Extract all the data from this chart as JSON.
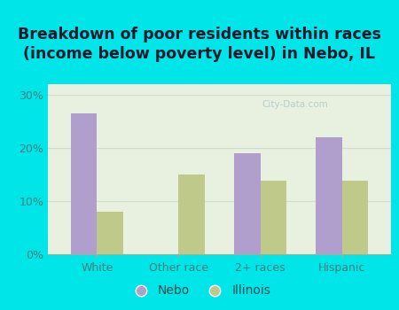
{
  "title": "Breakdown of poor residents within races\n(income below poverty level) in Nebo, IL",
  "categories": [
    "White",
    "Other race",
    "2+ races",
    "Hispanic"
  ],
  "nebo_values": [
    26.5,
    0,
    19.0,
    22.0
  ],
  "illinois_values": [
    8.0,
    15.0,
    13.8,
    13.8
  ],
  "nebo_color": "#b09fcc",
  "illinois_color": "#bfc98a",
  "background_color": "#00e5e8",
  "plot_bg_color": "#e8f0e0",
  "ylim": [
    0,
    32
  ],
  "yticks": [
    0,
    10,
    20,
    30
  ],
  "bar_width": 0.32,
  "legend_nebo": "Nebo",
  "legend_illinois": "Illinois",
  "title_fontsize": 12.5,
  "tick_fontsize": 9,
  "legend_fontsize": 10,
  "axis_label_color": "#3d8080",
  "ytick_color": "#3d8080",
  "grid_color": "#d0dfc8",
  "bottom_spine_color": "#a0b090"
}
